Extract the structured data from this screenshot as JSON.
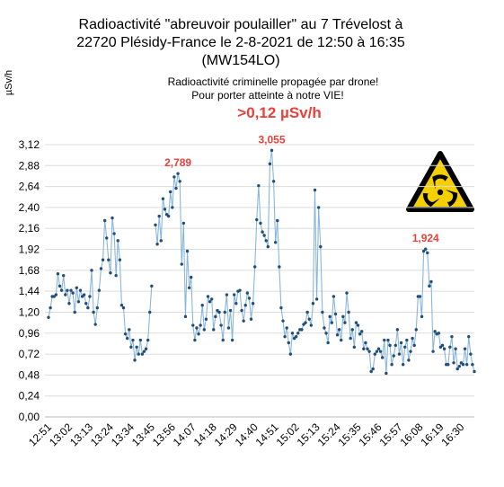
{
  "chart_data": {
    "type": "line",
    "title": [
      "Radioactivité \"abreuvoir poulailler\" au 7 Trévelost à",
      "22720 Plésidy-France le 2-8-2021 de 12:50 à 16:35",
      "(MW154LO)"
    ],
    "subtitle": [
      "Radioactivité criminelle propagée par drone!",
      "Pour porter atteinte à notre VIE!"
    ],
    "annotation": ">0,12 µSv/h",
    "ylabel": "µSv/h",
    "grid": true,
    "ylim": [
      0,
      3.12
    ],
    "yticks": [
      {
        "value": 0,
        "label": "0,00"
      },
      {
        "value": 0.24,
        "label": "0,24"
      },
      {
        "value": 0.48,
        "label": "0,48"
      },
      {
        "value": 0.72,
        "label": "0,72"
      },
      {
        "value": 0.96,
        "label": "0,96"
      },
      {
        "value": 1.2,
        "label": "1,20"
      },
      {
        "value": 1.44,
        "label": "1,44"
      },
      {
        "value": 1.68,
        "label": "1,68"
      },
      {
        "value": 1.92,
        "label": "1,92"
      },
      {
        "value": 2.16,
        "label": "2,16"
      },
      {
        "value": 2.4,
        "label": "2,40"
      },
      {
        "value": 2.64,
        "label": "2,64"
      },
      {
        "value": 2.88,
        "label": "2,88"
      },
      {
        "value": 3.12,
        "label": "3,12"
      }
    ],
    "categories": [
      "12:51",
      null,
      null,
      null,
      null,
      null,
      null,
      null,
      null,
      null,
      null,
      "13:02",
      null,
      null,
      null,
      null,
      null,
      null,
      null,
      null,
      null,
      null,
      "13:13",
      null,
      null,
      null,
      null,
      null,
      null,
      null,
      null,
      null,
      null,
      "13:24",
      null,
      null,
      null,
      null,
      null,
      null,
      null,
      null,
      null,
      null,
      "13:34",
      null,
      null,
      null,
      null,
      null,
      null,
      null,
      null,
      null,
      null,
      "13:45",
      null,
      null,
      null,
      null,
      null,
      null,
      null,
      null,
      null,
      null,
      "13:56",
      null,
      null,
      null,
      null,
      null,
      null,
      null,
      null,
      null,
      null,
      "14:07",
      null,
      null,
      null,
      null,
      null,
      null,
      null,
      null,
      null,
      null,
      "14:18",
      null,
      null,
      null,
      null,
      null,
      null,
      null,
      null,
      null,
      null,
      "14:29",
      null,
      null,
      null,
      null,
      null,
      null,
      null,
      null,
      null,
      null,
      "14:40",
      null,
      null,
      null,
      null,
      null,
      null,
      null,
      null,
      null,
      null,
      "14:51",
      null,
      null,
      null,
      null,
      null,
      null,
      null,
      null,
      null,
      null,
      "15:02",
      null,
      null,
      null,
      null,
      null,
      null,
      null,
      null,
      null,
      null,
      "15:13",
      null,
      null,
      null,
      null,
      null,
      null,
      null,
      null,
      null,
      null,
      "15:24",
      null,
      null,
      null,
      null,
      null,
      null,
      null,
      null,
      null,
      null,
      "15:35",
      null,
      null,
      null,
      null,
      null,
      null,
      null,
      null,
      null,
      null,
      "15:46",
      null,
      null,
      null,
      null,
      null,
      null,
      null,
      null,
      null,
      null,
      "15:57",
      null,
      null,
      null,
      null,
      null,
      null,
      null,
      null,
      null,
      null,
      "16:08",
      null,
      null,
      null,
      null,
      null,
      null,
      null,
      null,
      null,
      null,
      "16:19",
      null,
      null,
      null,
      null,
      null,
      null,
      null,
      null,
      null,
      null,
      "16:30",
      null,
      null,
      null,
      null,
      null,
      null,
      null
    ],
    "series": [
      {
        "color": "#8ab6dc",
        "marker_color": "#1f4e79",
        "values": [
          1.14,
          1.25,
          1.38,
          1.38,
          1.4,
          1.64,
          1.5,
          1.45,
          1.62,
          1.4,
          1.45,
          1.3,
          1.45,
          1.42,
          1.2,
          1.48,
          1.32,
          1.45,
          1.38,
          1.4,
          1.3,
          1.25,
          1.38,
          1.68,
          1.2,
          1.06,
          1.25,
          1.45,
          1.7,
          1.8,
          2.25,
          2.05,
          1.8,
          1.65,
          2.28,
          2.1,
          1.62,
          2.02,
          1.8,
          1.28,
          1.25,
          0.95,
          0.9,
          1.0,
          0.8,
          0.88,
          0.65,
          0.8,
          0.72,
          0.88,
          0.72,
          0.75,
          0.78,
          0.88,
          1.2,
          1.5,
          null,
          2.2,
          1.98,
          2.3,
          2.02,
          2.5,
          2.38,
          2.32,
          2.3,
          2.58,
          2.4,
          2.75,
          2.62,
          2.789,
          2.7,
          1.75,
          2.22,
          1.15,
          1.9,
          1.48,
          1.6,
          1.05,
          0.88,
          1.02,
          0.95,
          1.05,
          1.28,
          1.0,
          1.12,
          1.38,
          1.32,
          1.35,
          1.0,
          1.15,
          1.22,
          1.2,
          1.05,
          0.88,
          1.2,
          1.4,
          1.02,
          1.22,
          0.88,
          1.4,
          1.3,
          1.44,
          1.45,
          1.22,
          1.1,
          1.28,
          1.42,
          1.36,
          1.12,
          1.3,
          1.72,
          2.26,
          2.65,
          2.22,
          2.12,
          2.08,
          2.02,
          1.95,
          2.9,
          3.055,
          2.7,
          2.0,
          2.25,
          1.72,
          1.25,
          1.1,
          0.92,
          1.02,
          0.85,
          0.72,
          0.96,
          0.9,
          0.92,
          0.96,
          1.0,
          1.0,
          1.06,
          1.08,
          1.2,
          1.12,
          1.05,
          1.3,
          2.6,
          1.35,
          2.4,
          1.95,
          1.2,
          1.02,
          0.96,
          0.85,
          1.15,
          1.08,
          1.38,
          1.18,
          0.94,
          1.0,
          0.88,
          1.15,
          1.08,
          1.42,
          1.2,
          0.9,
          1.0,
          0.8,
          1.08,
          1.05,
          0.95,
          0.98,
          0.78,
          0.85,
          0.78,
          0.75,
          0.52,
          0.55,
          0.72,
          0.75,
          0.78,
          0.75,
          0.68,
          0.88,
          0.5,
          0.88,
          0.82,
          0.6,
          0.7,
          0.82,
          1.0,
          0.72,
          0.85,
          0.6,
          0.8,
          0.88,
          0.65,
          0.75,
          0.9,
          0.82,
          1.0,
          1.38,
          1.38,
          1.15,
          1.9,
          1.924,
          1.88,
          1.5,
          1.55,
          0.75,
          0.98,
          0.95,
          0.96,
          0.8,
          0.82,
          0.78,
          0.6,
          0.6,
          0.8,
          0.92,
          0.62,
          0.78,
          0.55,
          0.58,
          0.62,
          0.6,
          0.78,
          0.6,
          0.92,
          0.72,
          0.6,
          0.52
        ],
        "value_labels": [
          null,
          null,
          null,
          null,
          null,
          null,
          null,
          null,
          null,
          null,
          null,
          null,
          null,
          null,
          null,
          null,
          null,
          null,
          null,
          null,
          null,
          null,
          null,
          null,
          null,
          null,
          null,
          null,
          null,
          null,
          null,
          null,
          null,
          null,
          null,
          null,
          null,
          null,
          null,
          null,
          null,
          null,
          null,
          null,
          null,
          null,
          null,
          null,
          null,
          null,
          null,
          null,
          null,
          null,
          null,
          null,
          null,
          null,
          null,
          null,
          null,
          null,
          null,
          null,
          null,
          null,
          null,
          null,
          null,
          "2,789",
          null,
          null,
          null,
          null,
          null,
          null,
          null,
          null,
          null,
          null,
          null,
          null,
          null,
          null,
          null,
          null,
          null,
          null,
          null,
          null,
          null,
          null,
          null,
          null,
          null,
          null,
          null,
          null,
          null,
          null,
          null,
          null,
          null,
          null,
          null,
          null,
          null,
          null,
          null,
          null,
          null,
          null,
          null,
          null,
          null,
          null,
          null,
          null,
          null,
          "3,055",
          null,
          null,
          null,
          null,
          null,
          null,
          null,
          null,
          null,
          null,
          null,
          null,
          null,
          null,
          null,
          null,
          null,
          null,
          null,
          null,
          null,
          null,
          null,
          null,
          null,
          null,
          null,
          null,
          null,
          null,
          null,
          null,
          null,
          null,
          null,
          null,
          null,
          null,
          null,
          null,
          null,
          null,
          null,
          null,
          null,
          null,
          null,
          null,
          null,
          null,
          null,
          null,
          null,
          null,
          null,
          null,
          null,
          null,
          null,
          null,
          null,
          null,
          null,
          null,
          null,
          null,
          null,
          null,
          null,
          null,
          null,
          null,
          null,
          null,
          null,
          null,
          null,
          null,
          null,
          null,
          null,
          "1,924",
          null,
          null,
          null,
          null,
          null,
          null,
          null,
          null,
          null,
          null,
          null,
          null,
          null,
          null,
          null,
          null,
          null,
          null,
          null,
          null,
          null,
          null,
          null,
          null,
          null,
          null
        ]
      }
    ]
  }
}
